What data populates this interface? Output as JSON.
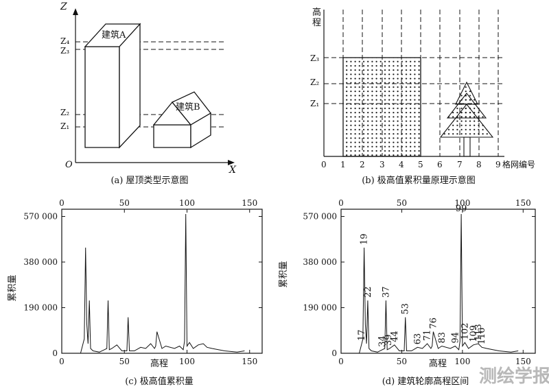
{
  "panel_a": {
    "caption": "(a) 屋顶类型示意图",
    "axis_z": "Z",
    "axis_x": "X",
    "origin": "O",
    "building_a": "建筑A",
    "building_b": "建筑B",
    "levels": [
      "Z₄",
      "Z₃",
      "Z₂",
      "Z₁"
    ]
  },
  "panel_b": {
    "caption": "(b) 极高值累积量原理示意图",
    "y_label": "高程",
    "x_label": "格网编号",
    "x_ticks": [
      "0",
      "1",
      "2",
      "3",
      "4",
      "5",
      "6",
      "7",
      "8",
      "9"
    ],
    "levels": [
      "Z₃",
      "Z₂",
      "Z₁"
    ]
  },
  "panel_c": {
    "caption": "(c) 极高值累积量",
    "xlabel": "高程",
    "ylabel": "累积量",
    "x_ticks": [
      "0",
      "50",
      "100",
      "150"
    ],
    "y_ticks": [
      "0",
      "190 000",
      "380 000",
      "570 000"
    ]
  },
  "panel_d": {
    "caption": "(d) 建筑轮廓高程区间",
    "xlabel": "高程",
    "ylabel": "累积量",
    "x_ticks": [
      "0",
      "50",
      "100",
      "150"
    ],
    "y_ticks": [
      "0",
      "190 000",
      "380 000",
      "570 000"
    ],
    "peak_labels": [
      "17",
      "19",
      "22",
      "34",
      "37",
      "39",
      "44",
      "53",
      "63",
      "71",
      "76",
      "83",
      "94",
      "99",
      "102",
      "109",
      "113",
      "116"
    ]
  },
  "watermark": "测绘学报",
  "chart_data": {
    "type": "line",
    "xlabel": "高程",
    "ylabel": "累积量",
    "xlim": [
      0,
      160
    ],
    "ylim": [
      0,
      600000
    ],
    "x": [
      15,
      17,
      18,
      19,
      20,
      21,
      22,
      23,
      25,
      30,
      34,
      36,
      37,
      38,
      40,
      44,
      48,
      52,
      53,
      54,
      58,
      63,
      67,
      71,
      74,
      75,
      76,
      80,
      83,
      90,
      94,
      97,
      98,
      99,
      100,
      102,
      105,
      109,
      113,
      116,
      120,
      130,
      140,
      146
    ],
    "y": [
      0,
      40000,
      60000,
      440000,
      120000,
      40000,
      220000,
      20000,
      10000,
      5000,
      15000,
      20000,
      220000,
      15000,
      20000,
      35000,
      10000,
      10000,
      150000,
      10000,
      10000,
      25000,
      20000,
      40000,
      20000,
      30000,
      90000,
      20000,
      30000,
      20000,
      30000,
      15000,
      50000,
      580000,
      30000,
      45000,
      20000,
      35000,
      40000,
      25000,
      20000,
      10000,
      5000,
      10000
    ]
  }
}
